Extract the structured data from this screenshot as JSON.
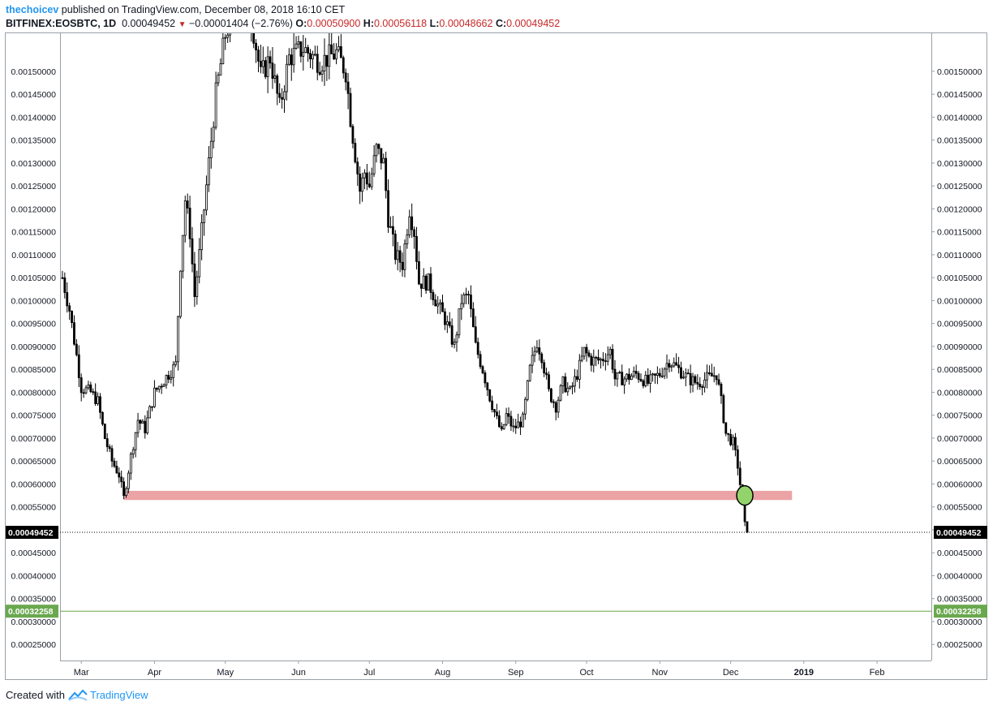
{
  "header": {
    "author": "thechoicev",
    "published": "published on TradingView.com, December 08, 2018 16:10 CET",
    "symbol": "BITFINEX:EOSBTC, 1D",
    "last": "0.00049452",
    "change_arrow": "▼",
    "change": "−0.00001404 (−2.76%)",
    "o_label": "O:",
    "o_value": "0.00050900",
    "h_label": "H:",
    "h_value": "0.00056118",
    "l_label": "L:",
    "l_value": "0.00048662",
    "c_label": "C:",
    "c_value": "0.00049452"
  },
  "footer": {
    "created_with": "Created with",
    "brand": "TradingView"
  },
  "colors": {
    "up": "#000000",
    "down": "#000000",
    "zone": "#eca3a6",
    "target": "#6aa84f",
    "marker": "#93d36b",
    "price_tag": "#000000"
  },
  "chart_data": {
    "type": "candlestick",
    "y_ticks": [
      "0.00025000",
      "0.00030000",
      "0.00035000",
      "0.00040000",
      "0.00045000",
      "0.00050000",
      "0.00055000",
      "0.00060000",
      "0.00065000",
      "0.00070000",
      "0.00075000",
      "0.00080000",
      "0.00085000",
      "0.00090000",
      "0.00095000",
      "0.00100000",
      "0.00105000",
      "0.00110000",
      "0.00115000",
      "0.00120000",
      "0.00125000",
      "0.00130000",
      "0.00135000",
      "0.00140000",
      "0.00145000",
      "0.00150000"
    ],
    "ylim": [
      0.000215,
      0.001583
    ],
    "x_ticks": [
      {
        "label": "Mar",
        "date": "2018-03-01"
      },
      {
        "label": "Apr",
        "date": "2018-04-01"
      },
      {
        "label": "May",
        "date": "2018-05-01"
      },
      {
        "label": "Jun",
        "date": "2018-06-01"
      },
      {
        "label": "Jul",
        "date": "2018-07-01"
      },
      {
        "label": "Aug",
        "date": "2018-08-01"
      },
      {
        "label": "Sep",
        "date": "2018-09-01"
      },
      {
        "label": "Oct",
        "date": "2018-10-01"
      },
      {
        "label": "Nov",
        "date": "2018-11-01"
      },
      {
        "label": "Dec",
        "date": "2018-12-01"
      },
      {
        "label": "2019",
        "date": "2019-01-01",
        "bold": true
      },
      {
        "label": "Feb",
        "date": "2019-02-01"
      }
    ],
    "xlim": [
      "2018-02-20",
      "2019-02-24"
    ],
    "last_price": {
      "value": 0.00049452,
      "label": "0.00049452"
    },
    "target_line": {
      "value": 0.00032258,
      "label": "0.00032258"
    },
    "support_zone": {
      "from": "2018-03-19",
      "to": "2018-12-27",
      "low": 0.000565,
      "high": 0.000585
    },
    "marker": {
      "date": "2018-12-07",
      "value": 0.000575
    },
    "close_path": [
      [
        "2018-02-21",
        0.00105
      ],
      [
        "2018-02-24",
        0.00098
      ],
      [
        "2018-02-27",
        0.00088
      ],
      [
        "2018-03-01",
        0.00081
      ],
      [
        "2018-03-05",
        0.0008
      ],
      [
        "2018-03-08",
        0.00078
      ],
      [
        "2018-03-11",
        0.0007
      ],
      [
        "2018-03-14",
        0.00065
      ],
      [
        "2018-03-17",
        0.00062
      ],
      [
        "2018-03-19",
        0.00057
      ],
      [
        "2018-03-22",
        0.00066
      ],
      [
        "2018-03-25",
        0.00074
      ],
      [
        "2018-03-28",
        0.00072
      ],
      [
        "2018-04-01",
        0.0008
      ],
      [
        "2018-04-04",
        0.00082
      ],
      [
        "2018-04-07",
        0.00084
      ],
      [
        "2018-04-10",
        0.00086
      ],
      [
        "2018-04-12",
        0.00108
      ],
      [
        "2018-04-14",
        0.00122
      ],
      [
        "2018-04-16",
        0.00115
      ],
      [
        "2018-04-18",
        0.00101
      ],
      [
        "2018-04-20",
        0.0011
      ],
      [
        "2018-04-22",
        0.0012
      ],
      [
        "2018-04-24",
        0.0013
      ],
      [
        "2018-04-27",
        0.00145
      ],
      [
        "2018-05-01",
        0.00158
      ],
      [
        "2018-05-06",
        0.00165
      ],
      [
        "2018-05-12",
        0.00162
      ],
      [
        "2018-05-16",
        0.00149
      ],
      [
        "2018-05-20",
        0.00153
      ],
      [
        "2018-05-24",
        0.00142
      ],
      [
        "2018-05-28",
        0.00153
      ],
      [
        "2018-06-03",
        0.00155
      ],
      [
        "2018-06-10",
        0.00152
      ],
      [
        "2018-06-17",
        0.00154
      ],
      [
        "2018-06-21",
        0.0015
      ],
      [
        "2018-06-23",
        0.0014
      ],
      [
        "2018-06-25",
        0.00132
      ],
      [
        "2018-06-27",
        0.00124
      ],
      [
        "2018-06-29",
        0.00128
      ],
      [
        "2018-07-01",
        0.00125
      ],
      [
        "2018-07-04",
        0.00133
      ],
      [
        "2018-07-07",
        0.0013
      ],
      [
        "2018-07-09",
        0.00118
      ],
      [
        "2018-07-12",
        0.0011
      ],
      [
        "2018-07-15",
        0.00108
      ],
      [
        "2018-07-18",
        0.0012
      ],
      [
        "2018-07-20",
        0.00115
      ],
      [
        "2018-07-22",
        0.00104
      ],
      [
        "2018-07-26",
        0.00104
      ],
      [
        "2018-07-30",
        0.00099
      ],
      [
        "2018-08-02",
        0.00096
      ],
      [
        "2018-08-06",
        0.0009
      ],
      [
        "2018-08-09",
        0.001
      ],
      [
        "2018-08-12",
        0.00101
      ],
      [
        "2018-08-15",
        0.0009
      ],
      [
        "2018-08-18",
        0.00085
      ],
      [
        "2018-08-21",
        0.00079
      ],
      [
        "2018-08-24",
        0.00074
      ],
      [
        "2018-08-26",
        0.00071
      ],
      [
        "2018-08-28",
        0.00075
      ],
      [
        "2018-08-31",
        0.00072
      ],
      [
        "2018-09-04",
        0.00074
      ],
      [
        "2018-09-07",
        0.00085
      ],
      [
        "2018-09-10",
        0.00091
      ],
      [
        "2018-09-12",
        0.00088
      ],
      [
        "2018-09-15",
        0.0008
      ],
      [
        "2018-09-18",
        0.00077
      ],
      [
        "2018-09-21",
        0.00082
      ],
      [
        "2018-09-24",
        0.0008
      ],
      [
        "2018-09-27",
        0.00084
      ],
      [
        "2018-09-30",
        0.00089
      ],
      [
        "2018-10-03",
        0.00087
      ],
      [
        "2018-10-07",
        0.00087
      ],
      [
        "2018-10-11",
        0.00089
      ],
      [
        "2018-10-13",
        0.00083
      ],
      [
        "2018-10-17",
        0.00083
      ],
      [
        "2018-10-22",
        0.00084
      ],
      [
        "2018-10-27",
        0.00082
      ],
      [
        "2018-11-01",
        0.00084
      ],
      [
        "2018-11-05",
        0.00087
      ],
      [
        "2018-11-09",
        0.00085
      ],
      [
        "2018-11-13",
        0.00083
      ],
      [
        "2018-11-17",
        0.00082
      ],
      [
        "2018-11-21",
        0.00083
      ],
      [
        "2018-11-25",
        0.00084
      ],
      [
        "2018-11-27",
        0.00078
      ],
      [
        "2018-11-29",
        0.00071
      ],
      [
        "2018-12-02",
        0.00069
      ],
      [
        "2018-12-04",
        0.00064
      ],
      [
        "2018-12-06",
        0.00056
      ],
      [
        "2018-12-07",
        0.00051
      ],
      [
        "2018-12-08",
        0.000495
      ]
    ]
  }
}
